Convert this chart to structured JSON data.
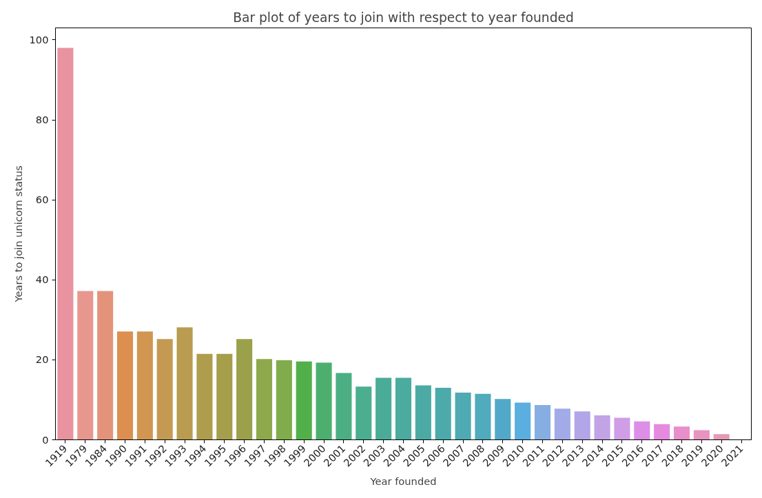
{
  "chart_data": {
    "type": "bar",
    "title": "Bar plot of years to join with respect to year founded",
    "xlabel": "Year founded",
    "ylabel": "Years to join unicorn status",
    "categories": [
      "1919",
      "1979",
      "1984",
      "1990",
      "1991",
      "1992",
      "1993",
      "1994",
      "1995",
      "1996",
      "1997",
      "1998",
      "1999",
      "2000",
      "2001",
      "2002",
      "2003",
      "2004",
      "2005",
      "2006",
      "2007",
      "2008",
      "2009",
      "2010",
      "2011",
      "2012",
      "2013",
      "2014",
      "2015",
      "2016",
      "2017",
      "2018",
      "2019",
      "2020",
      "2021"
    ],
    "values": [
      98,
      37.2,
      37.2,
      27.1,
      27.1,
      25.2,
      28.1,
      21.5,
      21.5,
      25.2,
      20.2,
      19.9,
      19.6,
      19.3,
      16.7,
      13.3,
      15.5,
      15.5,
      13.6,
      13.0,
      11.8,
      11.5,
      10.2,
      9.3,
      8.7,
      7.8,
      7.1,
      6.1,
      5.5,
      4.6,
      3.9,
      3.3,
      2.4,
      1.4,
      0
    ],
    "colors": [
      "#e8939f",
      "#e8978f",
      "#e4937b",
      "#dc8f4f",
      "#d19652",
      "#c49a53",
      "#b99c50",
      "#ae9d4c",
      "#a59e4a",
      "#9ba04a",
      "#8ea84c",
      "#80ac4c",
      "#52b04b",
      "#4daf6e",
      "#4caf84",
      "#4bae8f",
      "#4aac96",
      "#4aab9e",
      "#4baba4",
      "#4caaab",
      "#4eaab3",
      "#50abbc",
      "#52a8c8",
      "#5aaee0",
      "#87aee3",
      "#a2aae8",
      "#b2a6e8",
      "#c1a3e6",
      "#cf9ee6",
      "#dd8ee6",
      "#e68ae0",
      "#e78ecb",
      "#e794c1",
      "#e599b6",
      "#e89aac"
    ],
    "ylim": [
      0,
      103
    ],
    "yticks": [
      0,
      20,
      40,
      60,
      80,
      100
    ],
    "grid": false
  }
}
